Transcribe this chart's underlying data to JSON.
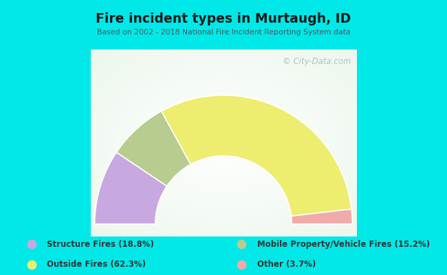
{
  "title": "Fire incident types in Murtaugh, ID",
  "subtitle": "Based on 2002 - 2018 National Fire Incident Reporting System data",
  "watermark": "© City-Data.com",
  "background_outer": "#00e8e8",
  "background_chart_color": "#e8f5ee",
  "categories": [
    "Structure Fires (18.8%)",
    "Outside Fires (62.3%)",
    "Mobile Property/Vehicle Fires (15.2%)",
    "Other (3.7%)"
  ],
  "values": [
    18.8,
    62.3,
    15.2,
    3.7
  ],
  "draw_order": [
    0,
    2,
    1,
    3
  ],
  "colors": [
    "#c8a8e0",
    "#eded70",
    "#b8cc90",
    "#f0aaaa"
  ],
  "title_color": "#1a1a1a",
  "subtitle_color": "#555555",
  "watermark_color": "#99bbcc",
  "legend_text_color": "#333333",
  "outer_r": 1.0,
  "inner_r": 0.48
}
